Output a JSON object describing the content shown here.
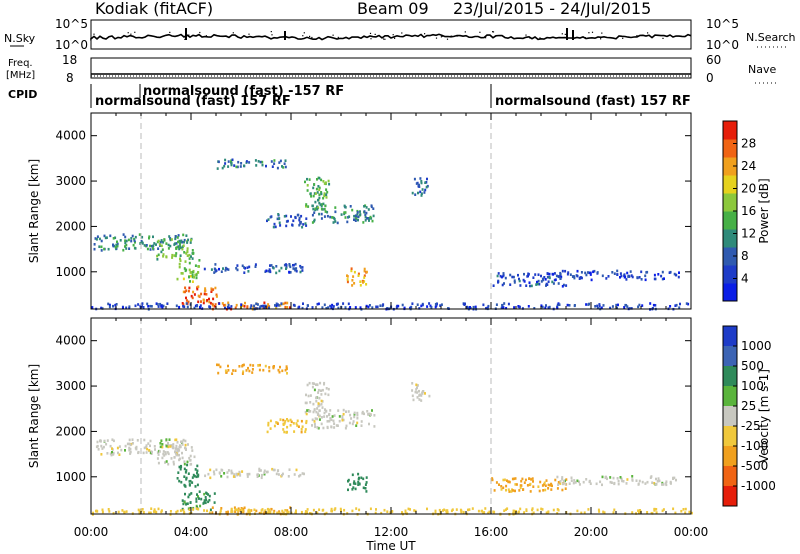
{
  "header": {
    "station": "Kodiak (fitACF)",
    "beam": "Beam 09",
    "date_range": "23/Jul/2015 - 24/Jul/2015"
  },
  "top_panels": {
    "nsky_label": "N.Sky",
    "nsky_ticks": [
      "10^5",
      "10^0"
    ],
    "nsearch_label": "N.Search",
    "nsearch_ticks": [
      "10^5",
      "10^0"
    ],
    "freq_label_1": "Freq.",
    "freq_label_2": "[MHz]",
    "freq_ticks": [
      "18",
      "8"
    ],
    "nave_label": "Nave",
    "nave_ticks": [
      "60",
      "0"
    ],
    "cpid_label": "CPID",
    "cpid_segments": [
      "normalsound (fast) 157 RF",
      "normalsound (fast) -157 RF",
      "normalsound (fast) 157 RF"
    ]
  },
  "chart_data": [
    {
      "type": "heatmap",
      "panel": "power",
      "ylabel": "Slant Range [km]",
      "xlabel": "",
      "ylim": [
        180,
        4500
      ],
      "yticks": [
        1000,
        2000,
        3000,
        4000
      ],
      "xticks": [
        "00:00",
        "04:00",
        "08:00",
        "12:00",
        "16:00",
        "20:00",
        "00:00"
      ],
      "xlim_hours": [
        0,
        24
      ],
      "colorbar": {
        "label": "Power [dB]",
        "range": [
          0,
          30
        ],
        "ticks": [
          "4",
          "8",
          "12",
          "16",
          "20",
          "24",
          "28"
        ],
        "colors": [
          "#0a1ee6",
          "#1e3cc8",
          "#2f5ab0",
          "#2f8a7a",
          "#46b046",
          "#8cc83c",
          "#e6d21e",
          "#f0a01e",
          "#f06414",
          "#e61e0a"
        ]
      },
      "regions": [
        {
          "t": [
            0.1,
            3.8
          ],
          "r": [
            1500,
            1850
          ],
          "v": 10
        },
        {
          "t": [
            2.6,
            4.1
          ],
          "r": [
            1300,
            1750
          ],
          "v": 14
        },
        {
          "t": [
            3.4,
            4.3
          ],
          "r": [
            800,
            1300
          ],
          "v": 16
        },
        {
          "t": [
            3.6,
            5.0
          ],
          "r": [
            300,
            700
          ],
          "v": 26
        },
        {
          "t": [
            4.8,
            8.0
          ],
          "r": [
            200,
            350
          ],
          "v": 24
        },
        {
          "t": [
            8.8,
            11.3
          ],
          "r": [
            2100,
            2500
          ],
          "v": 10
        },
        {
          "t": [
            8.5,
            9.5
          ],
          "r": [
            2400,
            3100
          ],
          "v": 13
        },
        {
          "t": [
            10.2,
            11.0
          ],
          "r": [
            700,
            1100
          ],
          "v": 22
        },
        {
          "t": [
            5.0,
            7.8
          ],
          "r": [
            3300,
            3500
          ],
          "v": 9
        },
        {
          "t": [
            7.0,
            8.6
          ],
          "r": [
            2000,
            2300
          ],
          "v": 7
        },
        {
          "t": [
            4.5,
            8.5
          ],
          "r": [
            1000,
            1200
          ],
          "v": 6
        },
        {
          "t": [
            12.8,
            13.5
          ],
          "r": [
            2700,
            3100
          ],
          "v": 8
        },
        {
          "t": [
            16.0,
            19.0
          ],
          "r": [
            700,
            1000
          ],
          "v": 6
        },
        {
          "t": [
            18.5,
            23.5
          ],
          "r": [
            850,
            1050
          ],
          "v": 5
        },
        {
          "t": [
            0.0,
            24.0
          ],
          "r": [
            200,
            330
          ],
          "v": 5
        }
      ]
    },
    {
      "type": "heatmap",
      "panel": "velocity",
      "ylabel": "Slant Range [km]",
      "xlabel": "Time UT",
      "ylim": [
        180,
        4500
      ],
      "yticks": [
        1000,
        2000,
        3000,
        4000
      ],
      "xticks": [
        "00:00",
        "04:00",
        "08:00",
        "12:00",
        "16:00",
        "20:00",
        "00:00"
      ],
      "xlim_hours": [
        0,
        24
      ],
      "colorbar": {
        "label": "Velocity [m s-1]",
        "ticks": [
          "1000",
          "500",
          "100",
          "25",
          "-25",
          "-100",
          "-500",
          "-1000"
        ],
        "colors": [
          "#1e3cc8",
          "#3c64b4",
          "#2f8a5a",
          "#5ab43c",
          "#c8c8c0",
          "#f0c83c",
          "#f0a01e",
          "#f06414",
          "#e61e0a"
        ]
      },
      "regions": [
        {
          "t": [
            0.1,
            3.8
          ],
          "r": [
            1500,
            1850
          ],
          "v": 0
        },
        {
          "t": [
            2.6,
            4.1
          ],
          "r": [
            1300,
            1750
          ],
          "v": 0
        },
        {
          "t": [
            3.4,
            4.3
          ],
          "r": [
            800,
            1300
          ],
          "v": 150
        },
        {
          "t": [
            3.6,
            5.0
          ],
          "r": [
            300,
            700
          ],
          "v": 120
        },
        {
          "t": [
            4.8,
            8.0
          ],
          "r": [
            200,
            350
          ],
          "v": -150
        },
        {
          "t": [
            8.8,
            11.3
          ],
          "r": [
            2100,
            2500
          ],
          "v": 0
        },
        {
          "t": [
            8.5,
            9.5
          ],
          "r": [
            2400,
            3100
          ],
          "v": 0
        },
        {
          "t": [
            10.2,
            11.0
          ],
          "r": [
            700,
            1100
          ],
          "v": 200
        },
        {
          "t": [
            5.0,
            7.8
          ],
          "r": [
            3300,
            3500
          ],
          "v": -120
        },
        {
          "t": [
            7.0,
            8.6
          ],
          "r": [
            2000,
            2300
          ],
          "v": -80
        },
        {
          "t": [
            4.5,
            8.5
          ],
          "r": [
            1000,
            1200
          ],
          "v": 0
        },
        {
          "t": [
            12.8,
            13.5
          ],
          "r": [
            2700,
            3100
          ],
          "v": 0
        },
        {
          "t": [
            16.0,
            19.0
          ],
          "r": [
            700,
            1000
          ],
          "v": -120
        },
        {
          "t": [
            18.5,
            23.5
          ],
          "r": [
            850,
            1050
          ],
          "v": 0
        },
        {
          "t": [
            0.0,
            24.0
          ],
          "r": [
            200,
            330
          ],
          "v": -60
        }
      ]
    }
  ]
}
